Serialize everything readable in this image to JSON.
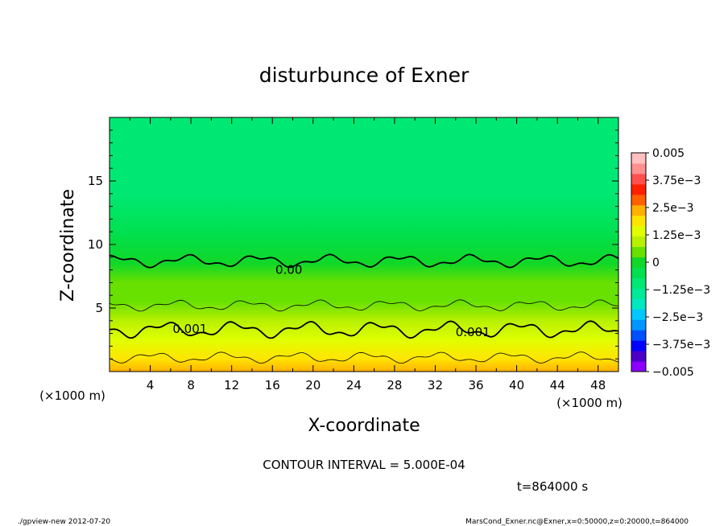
{
  "chart_data": {
    "type": "heatmap",
    "title": "disturbunce of Exner",
    "xlabel": "X-coordinate",
    "ylabel": "Z-coordinate",
    "x_unit": "(×1000 m)",
    "y_unit": "(×1000 m)",
    "xlim": [
      0,
      50
    ],
    "ylim": [
      0,
      20
    ],
    "x_ticks": [
      "4",
      "8",
      "12",
      "16",
      "20",
      "24",
      "28",
      "32",
      "36",
      "40",
      "44",
      "48"
    ],
    "y_ticks": [
      "5",
      "10",
      "15"
    ],
    "contour_interval_text": "CONTOUR INTERVAL = 5.000E-04",
    "time_text": "t=864000 s",
    "contour_labels": [
      {
        "text": "0.00",
        "x": 16.3,
        "z": 8.0
      },
      {
        "text": "0.001",
        "x": 6.2,
        "z": 3.35
      },
      {
        "text": "0.001",
        "x": 34.0,
        "z": 3.1
      }
    ],
    "levels_approx": [
      {
        "z": 0.0,
        "value": 0.0023
      },
      {
        "z": 1.0,
        "value": 0.0019
      },
      {
        "z": 2.5,
        "value": 0.0013
      },
      {
        "z": 4.0,
        "value": 0.001
      },
      {
        "z": 5.5,
        "value": 0.0007
      },
      {
        "z": 7.0,
        "value": 0.0004
      },
      {
        "z": 8.5,
        "value": 0.0
      },
      {
        "z": 11.0,
        "value": -0.0005
      },
      {
        "z": 14.0,
        "value": -0.0008
      },
      {
        "z": 20.0,
        "value": -0.001
      }
    ],
    "colorbar": {
      "labels": [
        "0.005",
        "3.75e−3",
        "2.5e−3",
        "1.25e−3",
        "0",
        "−1.25e−3",
        "−2.5e−3",
        "−3.75e−3",
        "−0.005"
      ],
      "colors": [
        "#8b00ff",
        "#4b00c8",
        "#0000ff",
        "#0050ff",
        "#0096ff",
        "#00c8ff",
        "#00e8c0",
        "#00e89a",
        "#00e874",
        "#00e050",
        "#10d828",
        "#68e000",
        "#b8f000",
        "#e0ff00",
        "#ffe400",
        "#ffb000",
        "#ff6000",
        "#ff2000",
        "#ff5050",
        "#ff9090",
        "#ffc0c0"
      ]
    },
    "colors": {
      "contour_line": "#000000"
    }
  },
  "footer": {
    "left": "./gpview-new   2012-07-20",
    "right": "MarsCond_Exner.nc@Exner,x=0:50000,z=0:20000,t=864000"
  }
}
